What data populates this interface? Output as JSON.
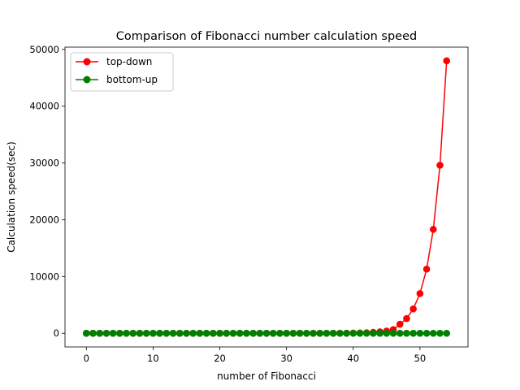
{
  "chart_data": {
    "type": "line",
    "title": "Comparison of Fibonacci number calculation speed",
    "xlabel": "number of Fibonacci",
    "ylabel": "Calculation speed(sec)",
    "xlim": [
      -3.2,
      57.2
    ],
    "ylim": [
      -2400,
      50400
    ],
    "xticks": [
      0,
      10,
      20,
      30,
      40,
      50
    ],
    "yticks": [
      0,
      10000,
      20000,
      30000,
      40000,
      50000
    ],
    "grid": false,
    "legend_position": "upper-left",
    "series": [
      {
        "name": "top-down",
        "color": "#ff0000",
        "marker": "circle",
        "x": [
          0,
          1,
          2,
          3,
          4,
          5,
          6,
          7,
          8,
          9,
          10,
          11,
          12,
          13,
          14,
          15,
          16,
          17,
          18,
          19,
          20,
          21,
          22,
          23,
          24,
          25,
          26,
          27,
          28,
          29,
          30,
          31,
          32,
          33,
          34,
          35,
          36,
          37,
          38,
          39,
          40,
          41,
          42,
          43,
          44,
          45,
          46,
          47,
          48,
          49,
          50,
          51,
          52,
          53,
          54
        ],
        "values": [
          0,
          0,
          0,
          0,
          0,
          0,
          0,
          0,
          0,
          0,
          0,
          0,
          0,
          0,
          0,
          0,
          0,
          0,
          0,
          0,
          0,
          0,
          0,
          0,
          0,
          0,
          0,
          0,
          0,
          0,
          0,
          0,
          0,
          1,
          2,
          4,
          6,
          10,
          16,
          25,
          40,
          65,
          100,
          160,
          250,
          400,
          650,
          1600,
          2600,
          4300,
          7000,
          11300,
          18300,
          29600,
          48000
        ]
      },
      {
        "name": "bottom-up",
        "color": "#008000",
        "marker": "circle",
        "x": [
          0,
          1,
          2,
          3,
          4,
          5,
          6,
          7,
          8,
          9,
          10,
          11,
          12,
          13,
          14,
          15,
          16,
          17,
          18,
          19,
          20,
          21,
          22,
          23,
          24,
          25,
          26,
          27,
          28,
          29,
          30,
          31,
          32,
          33,
          34,
          35,
          36,
          37,
          38,
          39,
          40,
          41,
          42,
          43,
          44,
          45,
          46,
          47,
          48,
          49,
          50,
          51,
          52,
          53,
          54
        ],
        "values": [
          0,
          0,
          0,
          0,
          0,
          0,
          0,
          0,
          0,
          0,
          0,
          0,
          0,
          0,
          0,
          0,
          0,
          0,
          0,
          0,
          0,
          0,
          0,
          0,
          0,
          0,
          0,
          0,
          0,
          0,
          0,
          0,
          0,
          0,
          0,
          0,
          0,
          0,
          0,
          0,
          0,
          0,
          0,
          0,
          0,
          0,
          0,
          0,
          0,
          0,
          0,
          0,
          0,
          0,
          0
        ]
      }
    ]
  }
}
